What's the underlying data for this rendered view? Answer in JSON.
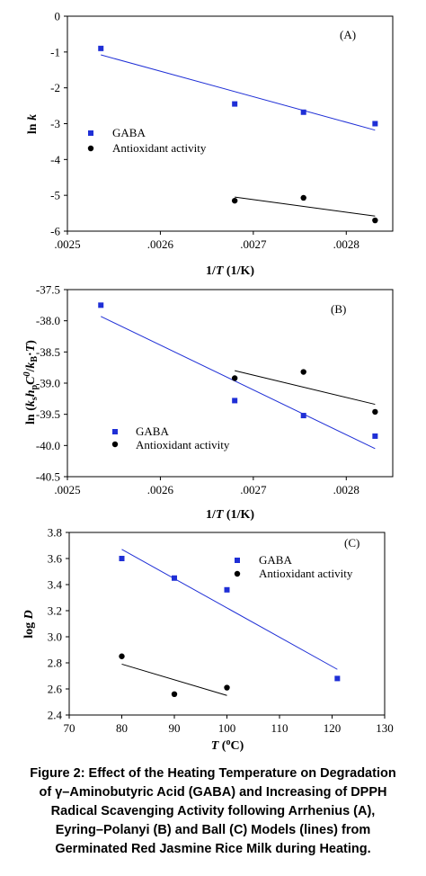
{
  "chart_data": [
    {
      "type": "scatter",
      "panel_label": "(A)",
      "title": "",
      "xlabel": "1/T (1/K)",
      "ylabel": "ln k",
      "xlim": [
        0.0025,
        0.00285
      ],
      "ylim": [
        -6,
        0
      ],
      "xticks": [
        ".0025",
        ".0026",
        ".0027",
        ".0028"
      ],
      "xtick_values": [
        0.0025,
        0.0026,
        0.0027,
        0.0028
      ],
      "yticks": [
        "0",
        "-1",
        "-2",
        "-3",
        "-4",
        "-5",
        "-6"
      ],
      "ytick_values": [
        0,
        -1,
        -2,
        -3,
        -4,
        -5,
        -6
      ],
      "legend_position": "middle-left",
      "series": [
        {
          "name": "GABA",
          "marker": "square",
          "color": "#1f2fd6",
          "x": [
            0.002536,
            0.00268,
            0.002754,
            0.002831
          ],
          "y": [
            -0.9,
            -2.45,
            -2.68,
            -3.0
          ],
          "fit": {
            "x": [
              0.002536,
              0.002831
            ],
            "y": [
              -1.08,
              -3.18
            ]
          }
        },
        {
          "name": "Antioxidant activity",
          "marker": "circle",
          "color": "#000000",
          "x": [
            0.00268,
            0.002754,
            0.002831
          ],
          "y": [
            -5.15,
            -5.07,
            -5.7
          ],
          "fit": {
            "x": [
              0.00268,
              0.002831
            ],
            "y": [
              -5.05,
              -5.58
            ]
          }
        }
      ]
    },
    {
      "type": "scatter",
      "panel_label": "(B)",
      "title": "",
      "xlabel": "1/T (1/K)",
      "ylabel": "ln (kₛhₚC⁰/k_B·T)",
      "xlim": [
        0.0025,
        0.00285
      ],
      "ylim": [
        -40.5,
        -37.5
      ],
      "xticks": [
        ".0025",
        ".0026",
        ".0027",
        ".0028"
      ],
      "xtick_values": [
        0.0025,
        0.0026,
        0.0027,
        0.0028
      ],
      "yticks": [
        "-37.5",
        "-38.0",
        "-38.5",
        "-39.0",
        "-39.5",
        "-40.0",
        "-40.5"
      ],
      "ytick_values": [
        -37.5,
        -38.0,
        -38.5,
        -39.0,
        -39.5,
        -40.0,
        -40.5
      ],
      "legend_position": "bottom-left",
      "series": [
        {
          "name": "GABA",
          "marker": "square",
          "color": "#1f2fd6",
          "x": [
            0.002536,
            0.00268,
            0.002754,
            0.002831
          ],
          "y": [
            -37.75,
            -39.28,
            -39.52,
            -39.85
          ],
          "fit": {
            "x": [
              0.002536,
              0.002831
            ],
            "y": [
              -37.93,
              -40.05
            ]
          }
        },
        {
          "name": "Antioxidant activity",
          "marker": "circle",
          "color": "#000000",
          "x": [
            0.00268,
            0.002754,
            0.002831
          ],
          "y": [
            -38.92,
            -38.82,
            -39.46
          ],
          "fit": {
            "x": [
              0.00268,
              0.002831
            ],
            "y": [
              -38.8,
              -39.34
            ]
          }
        }
      ]
    },
    {
      "type": "scatter",
      "panel_label": "(C)",
      "title": "",
      "xlabel": "T (°C)",
      "ylabel": "log D",
      "xlim": [
        70,
        130
      ],
      "ylim": [
        2.4,
        3.8
      ],
      "xticks": [
        "70",
        "80",
        "90",
        "100",
        "110",
        "120",
        "130"
      ],
      "xtick_values": [
        70,
        80,
        90,
        100,
        110,
        120,
        130
      ],
      "yticks": [
        "3.8",
        "3.6",
        "3.4",
        "3.2",
        "3.0",
        "2.8",
        "2.6",
        "2.4"
      ],
      "ytick_values": [
        3.8,
        3.6,
        3.4,
        3.2,
        3.0,
        2.8,
        2.6,
        2.4
      ],
      "legend_position": "top-right",
      "series": [
        {
          "name": "GABA",
          "marker": "square",
          "color": "#1f2fd6",
          "x": [
            80,
            90,
            100,
            121
          ],
          "y": [
            3.6,
            3.45,
            3.36,
            2.68
          ],
          "fit": {
            "x": [
              80,
              121
            ],
            "y": [
              3.67,
              2.75
            ]
          }
        },
        {
          "name": "Antioxidant activity",
          "marker": "circle",
          "color": "#000000",
          "x": [
            80,
            90,
            100
          ],
          "y": [
            2.85,
            2.56,
            2.61
          ],
          "fit": {
            "x": [
              80,
              100
            ],
            "y": [
              2.79,
              2.55
            ]
          }
        }
      ]
    }
  ],
  "axis_labels": {
    "a_x_main": "1/",
    "a_x_T": "T",
    "a_x_unit": " (1/K)",
    "a_y": "ln ",
    "a_y_k": "k",
    "b_x_main": "1/",
    "b_x_T": "T",
    "b_x_unit": " (1/K)",
    "b_y_pre": "ln (",
    "b_y_k": "k",
    "b_y_s": "s",
    "b_y_h": "h",
    "b_y_p": "p",
    "b_y_C": "C",
    "b_y_0": "0",
    "b_y_slash": "/",
    "b_y_kB": "k",
    "b_y_B": "B",
    "b_y_dot": "·",
    "b_y_T": "T",
    "b_y_close": ")",
    "c_x_T": "T",
    "c_x_open": " (",
    "c_x_o": "o",
    "c_x_C": "C)",
    "c_y_log": "log ",
    "c_y_D": "D"
  },
  "caption": {
    "lines": [
      "Figure 2: Effect of the Heating Temperature on Degradation",
      "of γ–Aminobutyric Acid (GABA) and Increasing of DPPH",
      "Radical Scavenging Activity following Arrhenius (A),",
      "Eyring–Polanyi (B) and Ball (C) Models (lines) from",
      "Germinated Red Jasmine Rice Milk during Heating."
    ]
  }
}
